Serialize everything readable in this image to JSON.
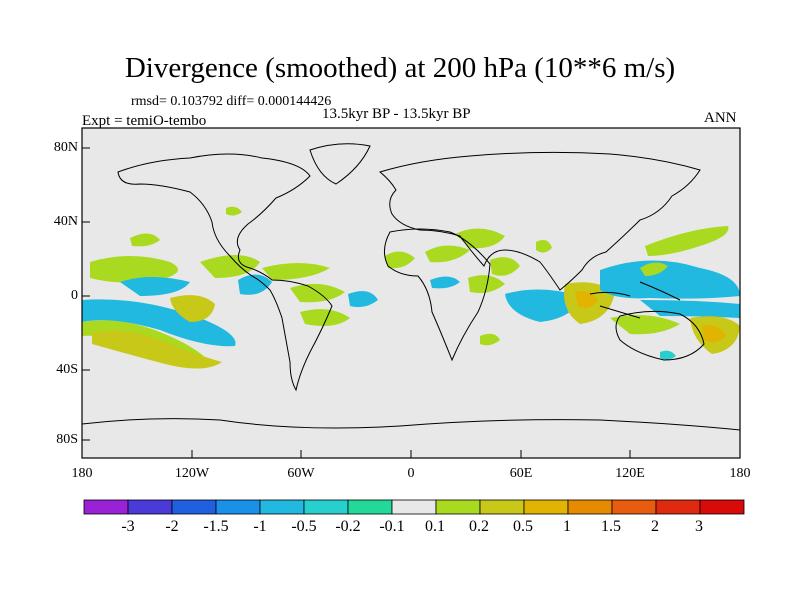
{
  "title": "Divergence (smoothed) at 200 hPa (10**6 m/s)",
  "stats": "rmsd= 0.103792 diff= 0.000144426",
  "period": "13.5kyr BP - 13.5kyr BP",
  "experiment": "Expt = temiO-tembo",
  "season": "ANN",
  "map": {
    "y_labels": [
      "80N",
      "40N",
      "0",
      "40S",
      "80S"
    ],
    "x_labels": [
      "180",
      "120W",
      "60W",
      "0",
      "60E",
      "120E",
      "180"
    ],
    "ocean_color": "#e8e8e8",
    "coast_color": "#000000"
  },
  "colorbar": {
    "labels": [
      "-3",
      "-2",
      "-1.5",
      "-1",
      "-0.5",
      "-0.2",
      "-0.1",
      "0.1",
      "0.2",
      "0.5",
      "1",
      "1.5",
      "2",
      "3"
    ],
    "colors": [
      "#9a22d6",
      "#4a3ad8",
      "#1f5fe0",
      "#1a90e8",
      "#22b9e0",
      "#27cfcf",
      "#22d99a",
      "#e8e8e8",
      "#a9da20",
      "#c8c818",
      "#e0b400",
      "#e68a00",
      "#e85c10",
      "#e02a10",
      "#d80a0a"
    ]
  }
}
